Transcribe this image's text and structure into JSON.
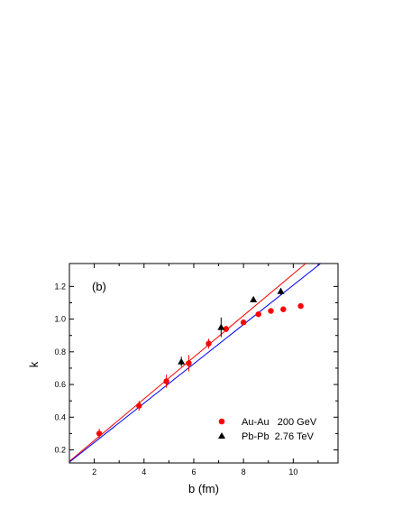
{
  "chart_data": {
    "type": "scatter",
    "panel_label": "(b)",
    "xlabel": "b (fm)",
    "ylabel": "k",
    "xlim": [
      1,
      11.8
    ],
    "ylim": [
      0.12,
      1.34
    ],
    "x_ticks": [
      2,
      4,
      6,
      8,
      10
    ],
    "y_ticks": [
      0.2,
      0.4,
      0.6,
      0.8,
      1.0,
      1.2
    ],
    "x_tick_labels": [
      "2",
      "4",
      "6",
      "8",
      "10"
    ],
    "y_tick_labels": [
      "0.2",
      "0.4",
      "0.6",
      "0.8",
      "1.0",
      "1.2"
    ],
    "grid": false,
    "legend_position": "bottom-right",
    "series": [
      {
        "name": "Au-Au   200 GeV",
        "marker": "circle",
        "color": "#ff0000",
        "x": [
          2.2,
          3.8,
          4.9,
          5.8,
          6.6,
          7.3,
          8.0,
          8.6,
          9.1,
          9.6,
          10.3
        ],
        "y": [
          0.3,
          0.47,
          0.62,
          0.73,
          0.85,
          0.94,
          0.98,
          1.03,
          1.05,
          1.06,
          1.08
        ],
        "err": [
          0.03,
          0.03,
          0.04,
          0.05,
          0.03,
          0.02,
          0.01,
          0.0,
          0.0,
          0.0,
          0.0
        ]
      },
      {
        "name": "Pb-Pb  2.76 TeV",
        "marker": "triangle",
        "color": "#000000",
        "x": [
          5.5,
          7.1,
          8.4,
          9.5
        ],
        "y": [
          0.74,
          0.95,
          1.12,
          1.17
        ],
        "err": [
          0.03,
          0.06,
          0.01,
          0.02
        ]
      }
    ],
    "fit_lines": [
      {
        "color": "#ff0000",
        "x": [
          1,
          10.5
        ],
        "y": [
          0.13,
          1.34
        ]
      },
      {
        "color": "#0000ff",
        "x": [
          1,
          11.1
        ],
        "y": [
          0.125,
          1.34
        ]
      }
    ]
  }
}
